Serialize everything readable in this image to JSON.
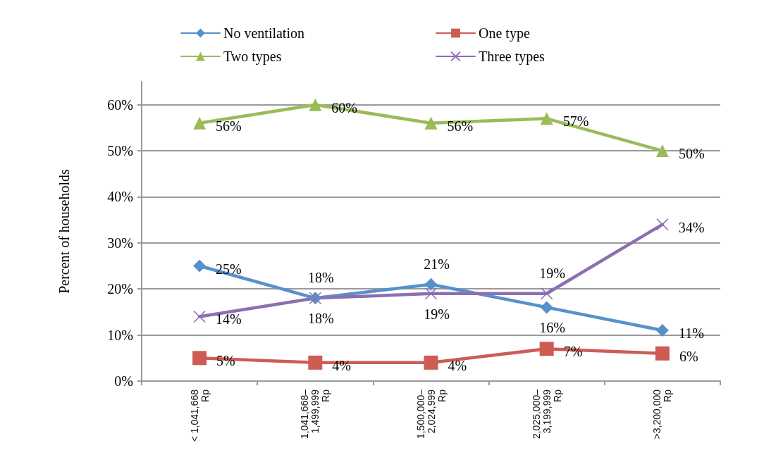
{
  "chart_data": {
    "type": "line",
    "ylabel": "Percent of households",
    "categories": [
      "< 1,041,668\nRp",
      "1,041,668–\n1,499,999\nRp",
      "1,500,000–\n2,024,999\nRp",
      "2,025,000–\n3,199,999\nRp",
      ">3,200,000\nRp"
    ],
    "series": [
      {
        "name": "No ventilation",
        "color": "#5691cb",
        "marker": "diamond",
        "values": [
          25,
          18,
          21,
          16,
          11
        ],
        "value_labels": [
          "25%",
          "18%",
          "21%",
          "16%",
          "11%"
        ]
      },
      {
        "name": "One type",
        "color": "#cd5c55",
        "marker": "square",
        "values": [
          5,
          4,
          4,
          7,
          6
        ],
        "value_labels": [
          "5%",
          "4%",
          "4%",
          "7%",
          "6%"
        ]
      },
      {
        "name": "Two types",
        "color": "#9bbb59",
        "marker": "triangle",
        "values": [
          56,
          60,
          56,
          57,
          50
        ],
        "value_labels": [
          "56%",
          "60%",
          "56%",
          "57%",
          "50%"
        ]
      },
      {
        "name": "Three types",
        "color": "#8c6fb0",
        "marker": "cross",
        "values": [
          14,
          18,
          19,
          19,
          34
        ],
        "value_labels": [
          "14%",
          "18%",
          "19%",
          "19%",
          "34%"
        ]
      }
    ],
    "ylim": [
      0,
      65
    ],
    "yticks": [
      {
        "value": 0,
        "label": "0%"
      },
      {
        "value": 10,
        "label": "10%"
      },
      {
        "value": 20,
        "label": "20%"
      },
      {
        "value": 30,
        "label": "30%"
      },
      {
        "value": 40,
        "label": "40%"
      },
      {
        "value": 50,
        "label": "50%"
      },
      {
        "value": 60,
        "label": "60%"
      }
    ],
    "grid": "y",
    "legend": "top"
  }
}
